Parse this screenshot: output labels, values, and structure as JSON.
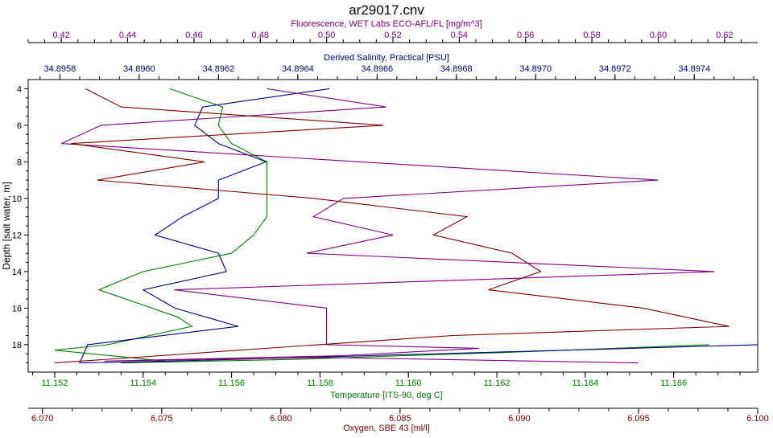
{
  "chart_data": {
    "type": "line",
    "title": "ar29017.cnv",
    "y_axis": {
      "label": "Depth [salt water, m]",
      "range": [
        3.5,
        19.5
      ],
      "reversed": true,
      "ticks": [
        4,
        6,
        8,
        10,
        12,
        14,
        16,
        18
      ]
    },
    "x_axes": [
      {
        "id": "fluorescence",
        "label": "Fluorescence, WET Labs ECO-AFL/FL [mg/m^3]",
        "position": "top",
        "color": "#800080",
        "range": [
          0.41,
          0.63
        ],
        "ticks": [
          "0.42",
          "0.44",
          "0.46",
          "0.48",
          "0.50",
          "0.52",
          "0.54",
          "0.56",
          "0.58",
          "0.60",
          "0.62"
        ]
      },
      {
        "id": "salinity",
        "label": "Derived Salinity, Practical [PSU]",
        "position": "top",
        "color": "#000080",
        "range": [
          34.89572,
          34.89756
        ],
        "ticks": [
          "34.8958",
          "34.8960",
          "34.8962",
          "34.8964",
          "34.8966",
          "34.8968",
          "34.8970",
          "34.8972",
          "34.8974"
        ]
      },
      {
        "id": "temperature",
        "label": "Temperature [ITS-90, deg C]",
        "position": "bottom",
        "color": "#008000",
        "range": [
          11.1514,
          11.1679
        ],
        "ticks": [
          "11.152",
          "11.154",
          "11.156",
          "11.158",
          "11.160",
          "11.162",
          "11.164",
          "11.166"
        ]
      },
      {
        "id": "oxygen",
        "label": "Oxygen, SBE 43 [ml/l]",
        "position": "bottom",
        "color": "#800000",
        "range": [
          6.0694,
          6.1
        ],
        "ticks": [
          "6.070",
          "6.075",
          "6.080",
          "6.085",
          "6.090",
          "6.095",
          "6.100"
        ]
      }
    ],
    "series": [
      {
        "axis": "temperature",
        "color": "#008000",
        "points": [
          [
            11.1546,
            4
          ],
          [
            11.1558,
            5
          ],
          [
            11.1557,
            6
          ],
          [
            11.156,
            7
          ],
          [
            11.1568,
            8
          ],
          [
            11.1568,
            10
          ],
          [
            11.1568,
            11
          ],
          [
            11.1565,
            12
          ],
          [
            11.156,
            13
          ],
          [
            11.155,
            13.5
          ],
          [
            11.154,
            14
          ],
          [
            11.153,
            15
          ],
          [
            11.1548,
            16.5
          ],
          [
            11.1551,
            17
          ],
          [
            11.1532,
            18
          ],
          [
            11.152,
            18.3
          ],
          [
            11.1545,
            18.9
          ],
          [
            11.1535,
            19
          ],
          [
            11.1575,
            18.8
          ],
          [
            11.1599,
            18.6
          ],
          [
            11.1625,
            18.4
          ],
          [
            11.1668,
            18
          ]
        ]
      },
      {
        "axis": "salinity",
        "color": "#000080",
        "points": [
          [
            34.89648,
            4
          ],
          [
            34.89616,
            5
          ],
          [
            34.89614,
            6
          ],
          [
            34.8962,
            7
          ],
          [
            34.89632,
            8
          ],
          [
            34.8962,
            9
          ],
          [
            34.8962,
            10
          ],
          [
            34.89611,
            11
          ],
          [
            34.89604,
            12
          ],
          [
            34.8962,
            13
          ],
          [
            34.89622,
            14
          ],
          [
            34.89601,
            15
          ],
          [
            34.89609,
            16
          ],
          [
            34.89625,
            17
          ],
          [
            34.89587,
            18
          ],
          [
            34.89585,
            19
          ],
          [
            34.89608,
            18.9
          ],
          [
            34.89658,
            18.6
          ],
          [
            34.89708,
            18.3
          ],
          [
            34.89756,
            18
          ]
        ]
      },
      {
        "axis": "fluorescence",
        "color": "#800080",
        "points": [
          [
            0.482,
            4
          ],
          [
            0.518,
            5
          ],
          [
            0.432,
            6
          ],
          [
            0.42,
            7
          ],
          [
            0.6,
            9
          ],
          [
            0.505,
            10
          ],
          [
            0.496,
            11
          ],
          [
            0.52,
            12
          ],
          [
            0.494,
            13
          ],
          [
            0.617,
            14
          ],
          [
            0.454,
            15
          ],
          [
            0.5,
            16
          ],
          [
            0.5,
            18
          ],
          [
            0.546,
            18.2
          ],
          [
            0.505,
            18.6
          ],
          [
            0.433,
            18.9
          ],
          [
            0.5,
            18.7
          ],
          [
            0.594,
            19
          ]
        ]
      },
      {
        "axis": "oxygen",
        "color": "#800000",
        "points": [
          [
            6.0718,
            4
          ],
          [
            6.0733,
            5
          ],
          [
            6.0843,
            6
          ],
          [
            6.0712,
            7
          ],
          [
            6.0768,
            8
          ],
          [
            6.0723,
            9
          ],
          [
            6.0814,
            10
          ],
          [
            6.0878,
            11
          ],
          [
            6.0864,
            12
          ],
          [
            6.0897,
            13
          ],
          [
            6.0909,
            14
          ],
          [
            6.0887,
            15
          ],
          [
            6.0952,
            16
          ],
          [
            6.0988,
            17
          ],
          [
            6.0872,
            17.5
          ],
          [
            6.0816,
            18
          ],
          [
            6.0705,
            19
          ]
        ]
      }
    ]
  }
}
